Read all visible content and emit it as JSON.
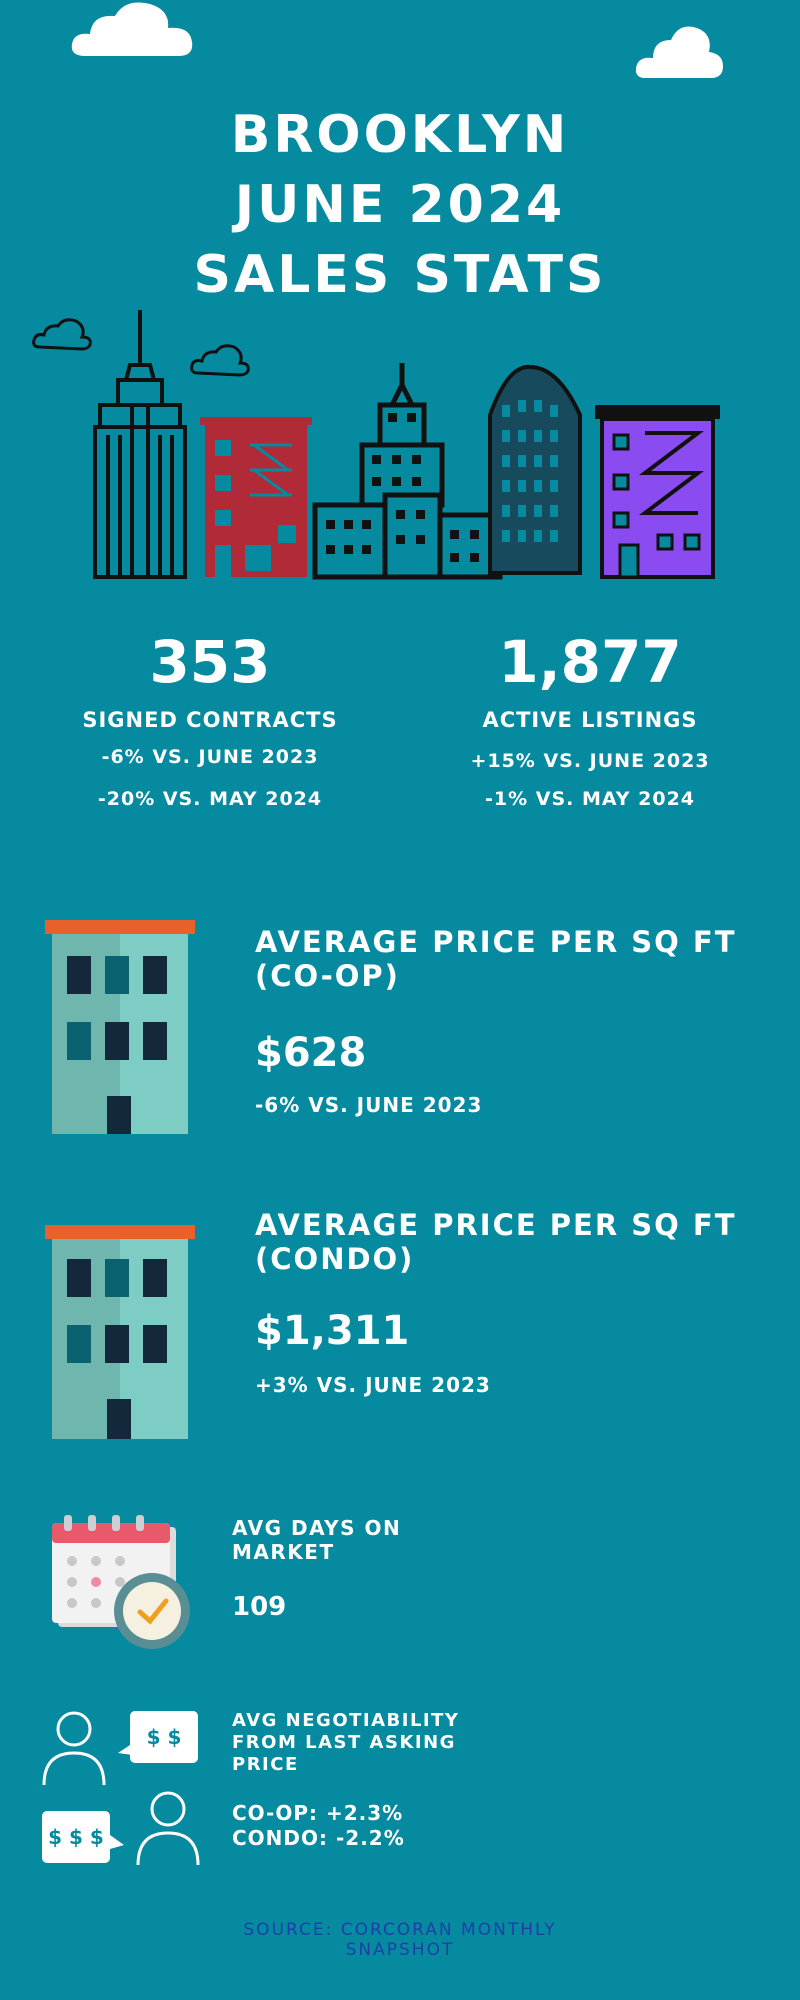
{
  "header": {
    "line1": "BROOKLYN",
    "line2": "JUNE 2024",
    "line3": "SALES STATS"
  },
  "stats": {
    "contracts": {
      "value": "353",
      "label": "SIGNED CONTRACTS",
      "yoy": "-6% VS. JUNE 2023",
      "mom": "-20% VS. MAY 2024"
    },
    "listings": {
      "value": "1,877",
      "label": "ACTIVE LISTINGS",
      "yoy": "+15% VS. JUNE 2023",
      "mom": "-1% VS. MAY 2024"
    }
  },
  "coop": {
    "heading_line1": "AVERAGE PRICE PER SQ FT",
    "heading_line2": "(CO-OP)",
    "value": "$628",
    "change": "-6% VS. JUNE 2023"
  },
  "condo": {
    "heading_line1": "AVERAGE PRICE PER SQ FT",
    "heading_line2": "(CONDO)",
    "value": "$1,311",
    "change": "+3% VS. JUNE 2023"
  },
  "dom": {
    "heading_line1": "AVG DAYS ON",
    "heading_line2": "MARKET",
    "value": "109"
  },
  "negotiability": {
    "heading_line1": "AVG NEGOTIABILITY",
    "heading_line2": "FROM LAST ASKING",
    "heading_line3": "PRICE",
    "coop": "CO-OP: +2.3%",
    "condo": "CONDO: -2.2%",
    "bubble1": "$ $",
    "bubble2": "$ $ $"
  },
  "source": {
    "line1": "SOURCE: CORCORAN MONTHLY",
    "line2": "SNAPSHOT"
  },
  "colors": {
    "background": "#068a9f",
    "red_building": "#b02a37",
    "purple_building": "#8a4cf0",
    "building_teal": "#7dcdc4",
    "roof_orange": "#e8602c",
    "source_text": "#1f3fa8"
  },
  "icons": [
    "cloud-icon",
    "skyline-illustration",
    "apartment-building-icon",
    "calendar-clock-icon",
    "negotiation-people-icon"
  ]
}
